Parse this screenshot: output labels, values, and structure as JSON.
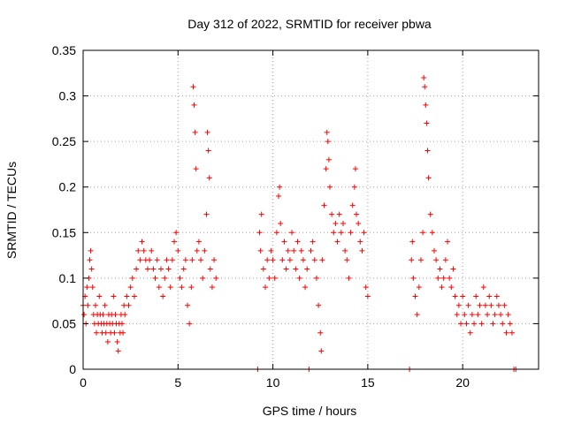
{
  "chart_data": {
    "type": "scatter",
    "title": "Day 312 of 2022, SRMTID for receiver pbwa",
    "xlabel": "GPS time / hours",
    "ylabel": "SRMTID / TECUs",
    "xlim": [
      0,
      24
    ],
    "ylim": [
      0,
      0.35
    ],
    "x_ticks": [
      0,
      5,
      10,
      15,
      20
    ],
    "y_ticks": [
      0,
      0.05,
      0.1,
      0.15,
      0.2,
      0.25,
      0.3,
      0.35
    ],
    "y_tick_labels": [
      "0",
      "0.05",
      "0.1",
      "0.15",
      "0.2",
      "0.25",
      "0.3",
      "0.35"
    ],
    "grid": true,
    "marker": "+",
    "color": "#ff0000",
    "series": [
      {
        "name": "SRMTID",
        "points": [
          [
            0.0,
            0.07
          ],
          [
            0.05,
            0.06
          ],
          [
            0.1,
            0.08
          ],
          [
            0.15,
            0.05
          ],
          [
            0.2,
            0.09
          ],
          [
            0.25,
            0.07
          ],
          [
            0.3,
            0.1
          ],
          [
            0.35,
            0.12
          ],
          [
            0.4,
            0.13
          ],
          [
            0.45,
            0.11
          ],
          [
            0.5,
            0.09
          ],
          [
            0.55,
            0.06
          ],
          [
            0.6,
            0.05
          ],
          [
            0.65,
            0.07
          ],
          [
            0.7,
            0.04
          ],
          [
            0.75,
            0.06
          ],
          [
            0.8,
            0.05
          ],
          [
            0.85,
            0.08
          ],
          [
            0.9,
            0.06
          ],
          [
            0.95,
            0.05
          ],
          [
            1.0,
            0.04
          ],
          [
            1.05,
            0.06
          ],
          [
            1.1,
            0.05
          ],
          [
            1.15,
            0.07
          ],
          [
            1.2,
            0.04
          ],
          [
            1.25,
            0.05
          ],
          [
            1.3,
            0.03
          ],
          [
            1.35,
            0.06
          ],
          [
            1.4,
            0.05
          ],
          [
            1.45,
            0.04
          ],
          [
            1.5,
            0.06
          ],
          [
            1.55,
            0.05
          ],
          [
            1.6,
            0.08
          ],
          [
            1.65,
            0.04
          ],
          [
            1.7,
            0.06
          ],
          [
            1.75,
            0.05
          ],
          [
            1.8,
            0.03
          ],
          [
            1.85,
            0.02
          ],
          [
            1.9,
            0.05
          ],
          [
            1.95,
            0.04
          ],
          [
            2.0,
            0.06
          ],
          [
            2.05,
            0.05
          ],
          [
            2.1,
            0.04
          ],
          [
            2.15,
            0.07
          ],
          [
            2.2,
            0.06
          ],
          [
            2.3,
            0.08
          ],
          [
            2.4,
            0.07
          ],
          [
            2.5,
            0.09
          ],
          [
            2.6,
            0.1
          ],
          [
            2.7,
            0.08
          ],
          [
            2.8,
            0.11
          ],
          [
            2.9,
            0.13
          ],
          [
            3.0,
            0.12
          ],
          [
            3.1,
            0.14
          ],
          [
            3.2,
            0.13
          ],
          [
            3.3,
            0.12
          ],
          [
            3.4,
            0.11
          ],
          [
            3.5,
            0.12
          ],
          [
            3.6,
            0.13
          ],
          [
            3.7,
            0.11
          ],
          [
            3.8,
            0.1
          ],
          [
            3.9,
            0.12
          ],
          [
            4.0,
            0.09
          ],
          [
            4.1,
            0.11
          ],
          [
            4.2,
            0.08
          ],
          [
            4.3,
            0.1
          ],
          [
            4.4,
            0.12
          ],
          [
            4.5,
            0.11
          ],
          [
            4.6,
            0.09
          ],
          [
            4.7,
            0.12
          ],
          [
            4.8,
            0.14
          ],
          [
            4.9,
            0.15
          ],
          [
            5.0,
            0.13
          ],
          [
            5.1,
            0.1
          ],
          [
            5.2,
            0.09
          ],
          [
            5.3,
            0.11
          ],
          [
            5.4,
            0.12
          ],
          [
            5.5,
            0.07
          ],
          [
            5.6,
            0.05
          ],
          [
            5.7,
            0.09
          ],
          [
            5.75,
            0.12
          ],
          [
            5.8,
            0.31
          ],
          [
            5.85,
            0.29
          ],
          [
            5.9,
            0.26
          ],
          [
            5.95,
            0.22
          ],
          [
            6.0,
            0.13
          ],
          [
            6.1,
            0.14
          ],
          [
            6.2,
            0.12
          ],
          [
            6.3,
            0.1
          ],
          [
            6.4,
            0.13
          ],
          [
            6.5,
            0.17
          ],
          [
            6.55,
            0.26
          ],
          [
            6.6,
            0.24
          ],
          [
            6.65,
            0.21
          ],
          [
            6.7,
            0.11
          ],
          [
            6.8,
            0.09
          ],
          [
            6.9,
            0.12
          ],
          [
            7.0,
            0.1
          ],
          [
            9.2,
            0.0
          ],
          [
            9.3,
            0.15
          ],
          [
            9.35,
            0.13
          ],
          [
            9.4,
            0.17
          ],
          [
            9.5,
            0.11
          ],
          [
            9.6,
            0.09
          ],
          [
            9.7,
            0.12
          ],
          [
            9.8,
            0.1
          ],
          [
            9.9,
            0.13
          ],
          [
            10.0,
            0.12
          ],
          [
            10.1,
            0.1
          ],
          [
            10.2,
            0.15
          ],
          [
            10.3,
            0.19
          ],
          [
            10.35,
            0.2
          ],
          [
            10.4,
            0.16
          ],
          [
            10.5,
            0.12
          ],
          [
            10.6,
            0.14
          ],
          [
            10.7,
            0.11
          ],
          [
            10.8,
            0.13
          ],
          [
            10.9,
            0.12
          ],
          [
            11.0,
            0.15
          ],
          [
            11.1,
            0.13
          ],
          [
            11.2,
            0.11
          ],
          [
            11.3,
            0.14
          ],
          [
            11.4,
            0.1
          ],
          [
            11.5,
            0.13
          ],
          [
            11.6,
            0.12
          ],
          [
            11.7,
            0.09
          ],
          [
            11.8,
            0.11
          ],
          [
            11.9,
            0.0
          ],
          [
            12.0,
            0.13
          ],
          [
            12.1,
            0.14
          ],
          [
            12.2,
            0.12
          ],
          [
            12.3,
            0.1
          ],
          [
            12.4,
            0.07
          ],
          [
            12.5,
            0.04
          ],
          [
            12.55,
            0.02
          ],
          [
            12.6,
            0.12
          ],
          [
            12.7,
            0.18
          ],
          [
            12.8,
            0.22
          ],
          [
            12.85,
            0.26
          ],
          [
            12.9,
            0.25
          ],
          [
            12.95,
            0.23
          ],
          [
            13.0,
            0.2
          ],
          [
            13.1,
            0.17
          ],
          [
            13.2,
            0.15
          ],
          [
            13.3,
            0.16
          ],
          [
            13.4,
            0.14
          ],
          [
            13.5,
            0.17
          ],
          [
            13.6,
            0.15
          ],
          [
            13.7,
            0.16
          ],
          [
            13.8,
            0.13
          ],
          [
            13.9,
            0.12
          ],
          [
            14.0,
            0.1
          ],
          [
            14.1,
            0.15
          ],
          [
            14.2,
            0.18
          ],
          [
            14.3,
            0.2
          ],
          [
            14.35,
            0.22
          ],
          [
            14.4,
            0.17
          ],
          [
            14.5,
            0.16
          ],
          [
            14.6,
            0.14
          ],
          [
            14.7,
            0.13
          ],
          [
            14.8,
            0.15
          ],
          [
            14.9,
            0.09
          ],
          [
            15.0,
            0.08
          ],
          [
            17.2,
            0.0
          ],
          [
            17.3,
            0.12
          ],
          [
            17.35,
            0.14
          ],
          [
            17.4,
            0.1
          ],
          [
            17.5,
            0.08
          ],
          [
            17.6,
            0.06
          ],
          [
            17.7,
            0.09
          ],
          [
            17.8,
            0.12
          ],
          [
            17.9,
            0.15
          ],
          [
            17.95,
            0.32
          ],
          [
            18.0,
            0.31
          ],
          [
            18.05,
            0.29
          ],
          [
            18.1,
            0.27
          ],
          [
            18.15,
            0.24
          ],
          [
            18.2,
            0.21
          ],
          [
            18.3,
            0.17
          ],
          [
            18.4,
            0.15
          ],
          [
            18.5,
            0.13
          ],
          [
            18.6,
            0.12
          ],
          [
            18.7,
            0.1
          ],
          [
            18.8,
            0.11
          ],
          [
            18.9,
            0.09
          ],
          [
            19.0,
            0.1
          ],
          [
            19.1,
            0.12
          ],
          [
            19.2,
            0.14
          ],
          [
            19.3,
            0.1
          ],
          [
            19.4,
            0.09
          ],
          [
            19.5,
            0.11
          ],
          [
            19.6,
            0.08
          ],
          [
            19.7,
            0.06
          ],
          [
            19.8,
            0.07
          ],
          [
            19.9,
            0.05
          ],
          [
            20.0,
            0.08
          ],
          [
            20.1,
            0.06
          ],
          [
            20.2,
            0.05
          ],
          [
            20.3,
            0.07
          ],
          [
            20.4,
            0.04
          ],
          [
            20.5,
            0.06
          ],
          [
            20.6,
            0.05
          ],
          [
            20.7,
            0.08
          ],
          [
            20.8,
            0.06
          ],
          [
            20.9,
            0.07
          ],
          [
            21.0,
            0.05
          ],
          [
            21.1,
            0.09
          ],
          [
            21.2,
            0.07
          ],
          [
            21.3,
            0.06
          ],
          [
            21.4,
            0.08
          ],
          [
            21.5,
            0.07
          ],
          [
            21.6,
            0.05
          ],
          [
            21.7,
            0.06
          ],
          [
            21.8,
            0.08
          ],
          [
            21.9,
            0.07
          ],
          [
            22.0,
            0.06
          ],
          [
            22.1,
            0.05
          ],
          [
            22.2,
            0.07
          ],
          [
            22.3,
            0.04
          ],
          [
            22.4,
            0.06
          ],
          [
            22.5,
            0.05
          ],
          [
            22.6,
            0.04
          ],
          [
            22.7,
            0.0
          ],
          [
            22.8,
            0.0
          ]
        ]
      }
    ]
  }
}
